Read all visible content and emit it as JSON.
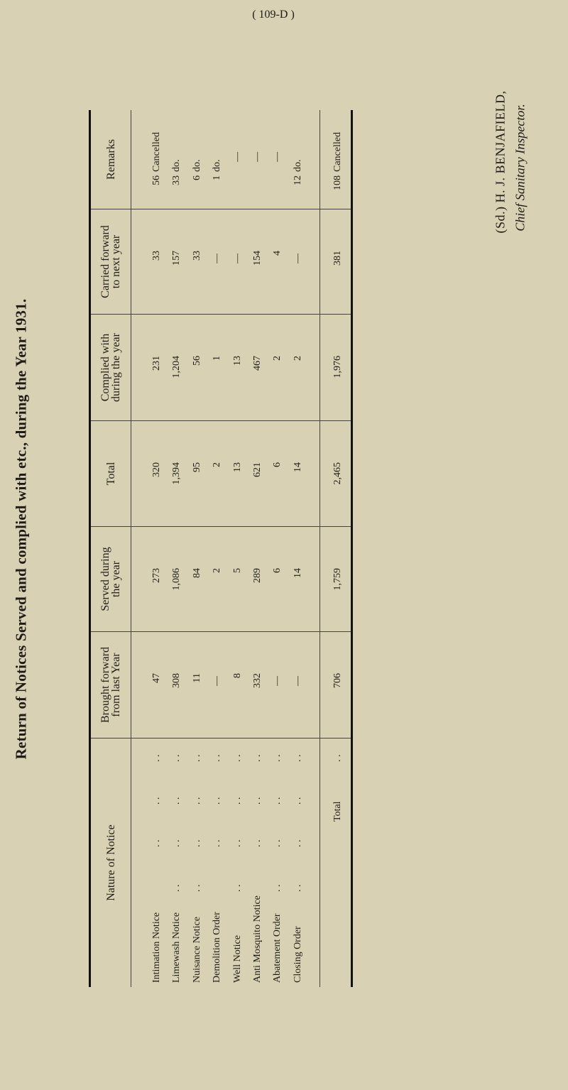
{
  "title": "Return of Notices Served and complied with etc., during the Year 1931.",
  "page_number": "( 109-D )",
  "leader": ". .",
  "table": {
    "nature": {
      "header": "Nature of Notice",
      "rows": [
        "Intimation Notice",
        "Limewash Notice",
        "Nuisance Notice",
        "Demolition Order",
        "Well Notice",
        "Anti Mosquito Notice",
        "Abatement Order",
        "Closing Order"
      ],
      "total_label": "Total"
    },
    "columns": [
      {
        "header": "Brought forward\nfrom last Year",
        "values": [
          "47",
          "308",
          "11",
          "—",
          "8",
          "332",
          "—",
          "—"
        ],
        "total": "706"
      },
      {
        "header": "Served during\nthe year",
        "values": [
          "273",
          "1,086",
          "84",
          "2",
          "5",
          "289",
          "6",
          "14"
        ],
        "total": "1,759"
      },
      {
        "header": "Total",
        "values": [
          "320",
          "1,394",
          "95",
          "2",
          "13",
          "621",
          "6",
          "14"
        ],
        "total": "2,465"
      },
      {
        "header": "Complied with\nduring the year",
        "values": [
          "231",
          "1,204",
          "56",
          "1",
          "13",
          "467",
          "2",
          "2"
        ],
        "total": "1,976"
      },
      {
        "header": "Carried forward\nto next year",
        "values": [
          "33",
          "157",
          "33",
          "—",
          "—",
          "154",
          "4",
          "—"
        ],
        "total": "381"
      }
    ],
    "remarks": {
      "header": "Remarks",
      "rows": [
        {
          "count": "56",
          "note": "Cancelled"
        },
        {
          "count": "33",
          "note": "do."
        },
        {
          "count": "6",
          "note": "do."
        },
        {
          "count": "1",
          "note": "do."
        },
        {
          "count": "",
          "note": "—"
        },
        {
          "count": "",
          "note": "—"
        },
        {
          "count": "",
          "note": "—"
        },
        {
          "count": "12",
          "note": "do."
        }
      ],
      "total": {
        "count": "108",
        "note": "Cancelled"
      }
    }
  },
  "signature": {
    "name": "(Sd.) H. J. BENJAFIELD,",
    "role": "Chief Sanitary Inspector."
  }
}
